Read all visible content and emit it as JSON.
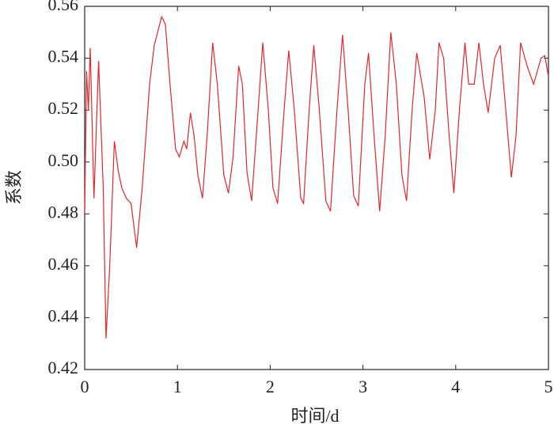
{
  "chart_data": {
    "type": "line",
    "xlabel": "时间/d",
    "ylabel": "系数",
    "x": [
      0,
      0.02,
      0.04,
      0.06,
      0.1,
      0.15,
      0.2,
      0.23,
      0.27,
      0.32,
      0.36,
      0.4,
      0.45,
      0.5,
      0.56,
      0.62,
      0.7,
      0.75,
      0.83,
      0.87,
      0.92,
      0.98,
      1.02,
      1.07,
      1.1,
      1.14,
      1.18,
      1.22,
      1.27,
      1.32,
      1.38,
      1.43,
      1.5,
      1.55,
      1.6,
      1.66,
      1.7,
      1.75,
      1.8,
      1.86,
      1.92,
      1.98,
      2.03,
      2.08,
      2.15,
      2.2,
      2.26,
      2.33,
      2.36,
      2.42,
      2.47,
      2.53,
      2.6,
      2.65,
      2.72,
      2.78,
      2.84,
      2.9,
      2.95,
      3.02,
      3.06,
      3.12,
      3.18,
      3.24,
      3.3,
      3.36,
      3.42,
      3.47,
      3.53,
      3.58,
      3.66,
      3.72,
      3.78,
      3.82,
      3.87,
      3.93,
      3.98,
      4.04,
      4.1,
      4.14,
      4.2,
      4.25,
      4.3,
      4.35,
      4.42,
      4.48,
      4.54,
      4.6,
      4.65,
      4.7,
      4.77,
      4.84,
      4.92,
      4.96,
      5
    ],
    "series": [
      {
        "color": "#e0282a",
        "values": [
          0.48,
          0.535,
          0.52,
          0.544,
          0.486,
          0.539,
          0.49,
          0.432,
          0.46,
          0.508,
          0.497,
          0.49,
          0.486,
          0.484,
          0.467,
          0.49,
          0.53,
          0.545,
          0.556,
          0.553,
          0.53,
          0.505,
          0.502,
          0.508,
          0.505,
          0.519,
          0.51,
          0.495,
          0.486,
          0.51,
          0.546,
          0.53,
          0.495,
          0.488,
          0.502,
          0.537,
          0.53,
          0.496,
          0.485,
          0.515,
          0.546,
          0.52,
          0.49,
          0.484,
          0.52,
          0.543,
          0.52,
          0.486,
          0.484,
          0.52,
          0.545,
          0.52,
          0.485,
          0.481,
          0.52,
          0.549,
          0.52,
          0.487,
          0.483,
          0.53,
          0.542,
          0.51,
          0.481,
          0.51,
          0.55,
          0.53,
          0.495,
          0.485,
          0.52,
          0.542,
          0.525,
          0.501,
          0.52,
          0.546,
          0.54,
          0.51,
          0.488,
          0.52,
          0.546,
          0.53,
          0.53,
          0.546,
          0.53,
          0.519,
          0.54,
          0.545,
          0.52,
          0.494,
          0.51,
          0.546,
          0.537,
          0.53,
          0.54,
          0.541,
          0.533
        ]
      }
    ],
    "xlim": [
      0,
      5
    ],
    "xticks": [
      0,
      1,
      2,
      3,
      4,
      5
    ],
    "ylim": [
      0.42,
      0.56
    ],
    "yticks": [
      0.42,
      0.44,
      0.46,
      0.48,
      {
        "value": 0.5,
        "label": "0.50"
      },
      0.52,
      0.54,
      0.56
    ]
  }
}
